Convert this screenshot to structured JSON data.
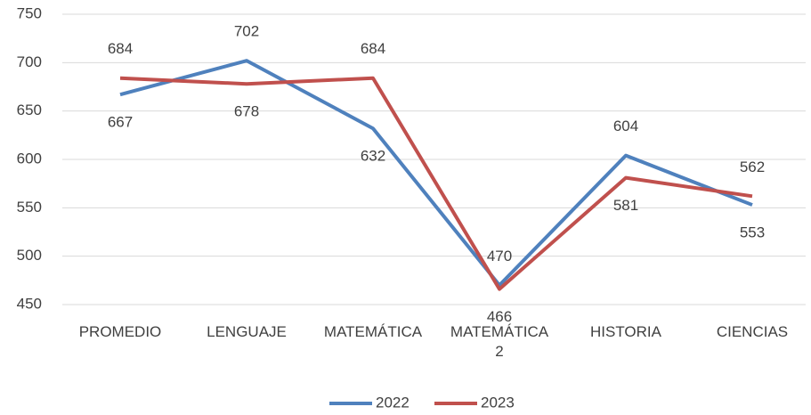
{
  "chart_data": {
    "type": "line",
    "categories": [
      "PROMEDIO",
      "LENGUAJE",
      "MATEMÁTICA",
      "MATEMÁTICA 2",
      "HISTORIA",
      "CIENCIAS"
    ],
    "series": [
      {
        "name": "2022",
        "color": "#4f81bd",
        "values": [
          667,
          702,
          632,
          470,
          604,
          553
        ]
      },
      {
        "name": "2023",
        "color": "#c0504d",
        "values": [
          684,
          678,
          684,
          466,
          581,
          562
        ]
      }
    ],
    "ylim": [
      450,
      750
    ],
    "yticks": [
      450,
      500,
      550,
      600,
      650,
      700,
      750
    ],
    "grid": true,
    "legend": "bottom"
  }
}
